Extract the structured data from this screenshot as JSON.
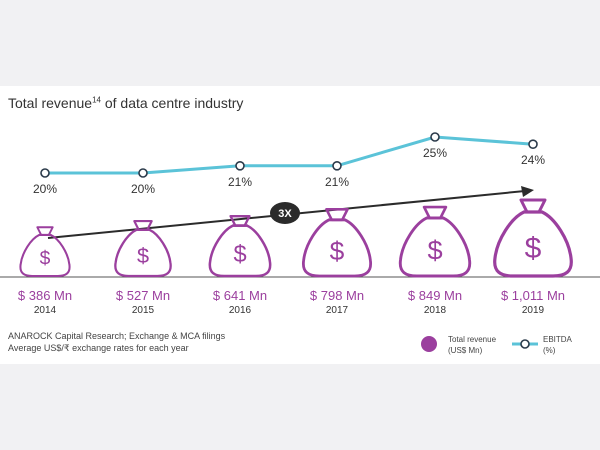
{
  "title": "Total revenue",
  "title_superscript": "14",
  "title_suffix": " of data centre industry",
  "growth_badge": "3X",
  "source_lines": [
    "ANAROCK Capital Research; Exchange & MCA filings",
    "Average US$/₹ exchange rates for each year"
  ],
  "legend": {
    "revenue_label": "Total revenue",
    "revenue_unit": "(US$ Mn)",
    "ebitda_label": "EBITDA",
    "ebitda_unit": "(%)"
  },
  "colors": {
    "revenue": "#9b3f9e",
    "ebitda": "#5bc3d8",
    "text": "#333333"
  },
  "chart_data": {
    "type": "line",
    "title": "Total revenue14 of data centre industry",
    "categories": [
      "2014",
      "2015",
      "2016",
      "2017",
      "2018",
      "2019"
    ],
    "series": [
      {
        "name": "Total revenue (US$ Mn)",
        "values": [
          386,
          527,
          641,
          798,
          849,
          1011
        ],
        "labels": [
          "$ 386 Mn",
          "$ 527 Mn",
          "$ 641 Mn",
          "$ 798 Mn",
          "$ 849 Mn",
          "$ 1,011 Mn"
        ]
      },
      {
        "name": "EBITDA (%)",
        "values": [
          20,
          20,
          21,
          21,
          25,
          24
        ],
        "labels": [
          "20%",
          "20%",
          "21%",
          "21%",
          "25%",
          "24%"
        ]
      }
    ],
    "legend_position": "bottom-right",
    "grid": false
  }
}
